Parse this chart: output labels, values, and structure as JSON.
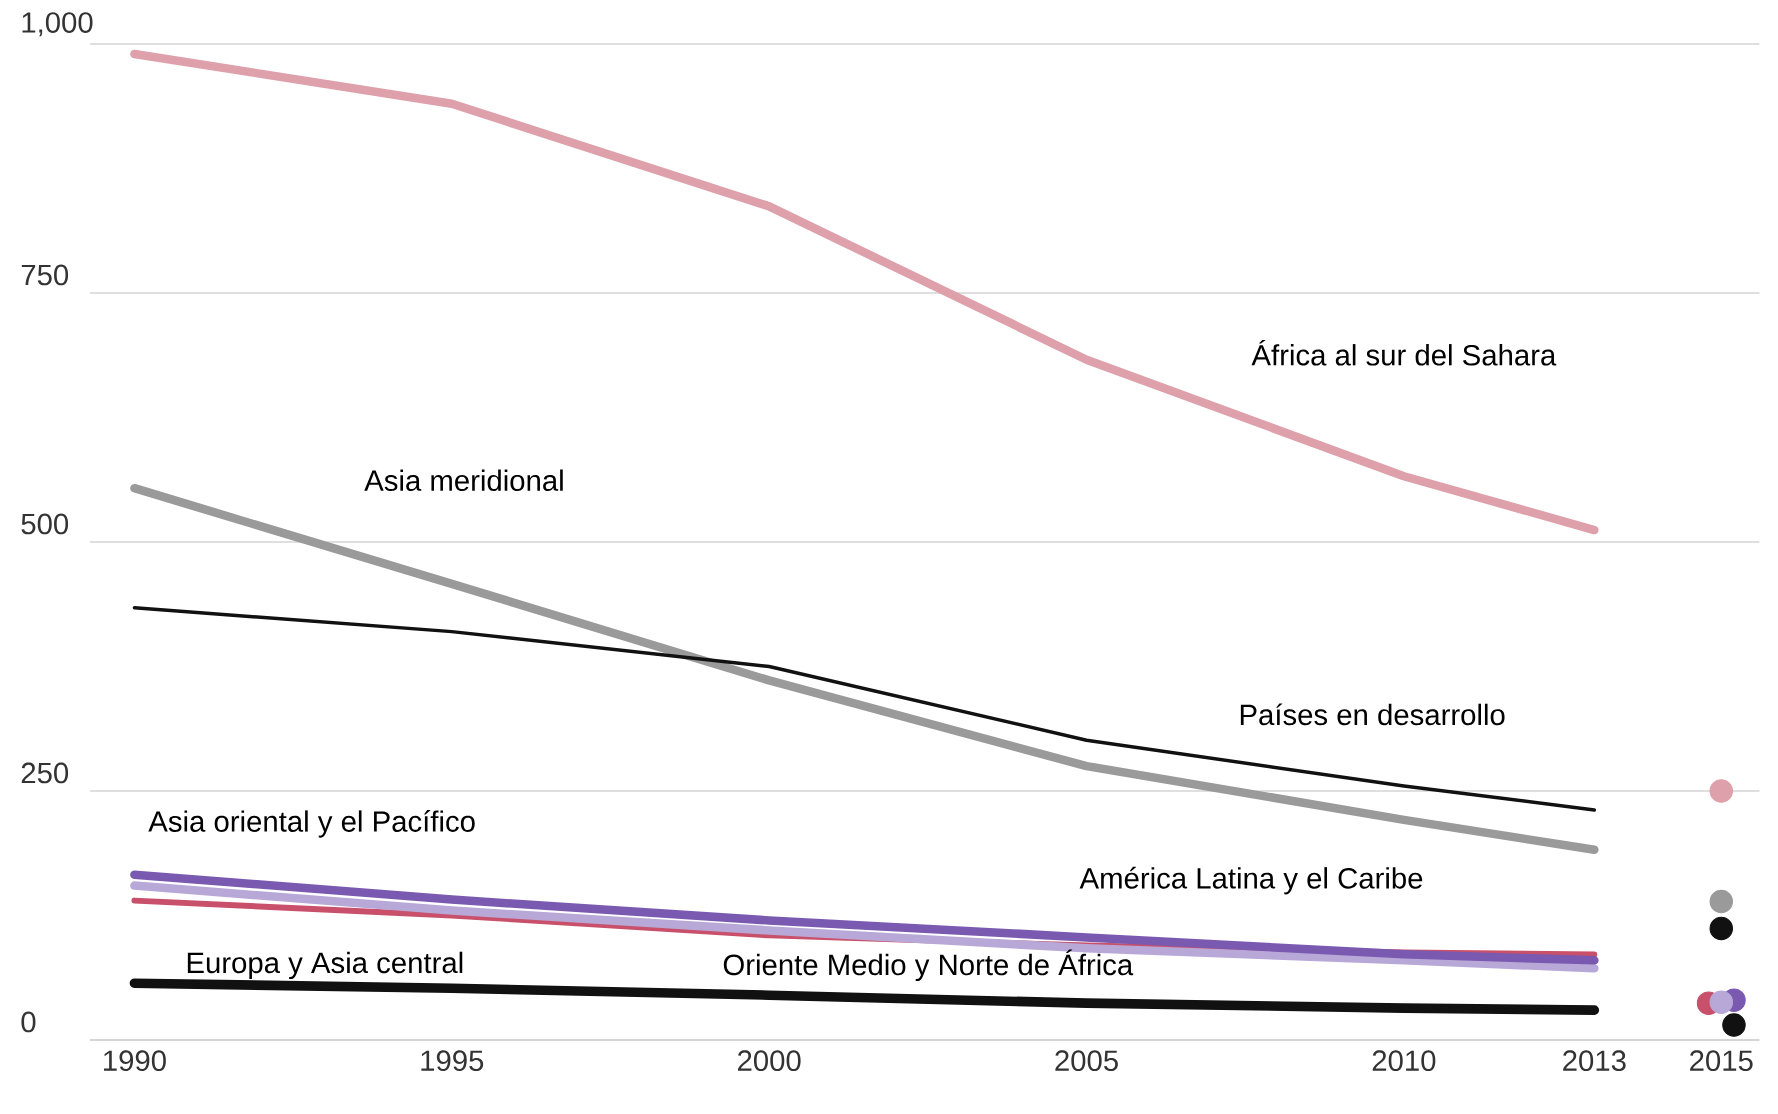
{
  "chart_data": {
    "type": "line",
    "xlim": [
      1989.3,
      2015.6
    ],
    "ylim": [
      0,
      1000
    ],
    "xticks": [
      1990,
      1995,
      2000,
      2005,
      2010,
      2013,
      2015
    ],
    "yticks": [
      0,
      250,
      500,
      {
        "value": 750,
        "label": "750"
      },
      {
        "value": 1000,
        "label": "1,000"
      }
    ],
    "grid": "y",
    "legend": false,
    "line_style": "solid",
    "series": [
      {
        "name": "África al sur del Sahara",
        "color": "#dea0aa",
        "x": [
          1990,
          1995,
          2000,
          2005,
          2010,
          2013
        ],
        "values": [
          990,
          940,
          837,
          683,
          566,
          512
        ]
      },
      {
        "name": "Asia meridional",
        "color": "#9a9a9a",
        "x": [
          1990,
          1995,
          2000,
          2005,
          2010,
          2013
        ],
        "values": [
          554,
          458,
          361,
          275,
          221,
          191
        ]
      },
      {
        "name": "Países en desarrollo",
        "color": "#111111",
        "x": [
          1990,
          1995,
          2000,
          2005,
          2010,
          2013
        ],
        "values": [
          434,
          410,
          375,
          301,
          255,
          231
        ]
      },
      {
        "name": "América Latina y el Caribe",
        "color": "#c8506a",
        "x": [
          1990,
          1995,
          2000,
          2005,
          2010,
          2013
        ],
        "values": [
          140,
          125,
          105,
          95,
          88,
          86
        ]
      },
      {
        "name": "Oriente Medio y Norte de África",
        "color": "#b8a8d8",
        "x": [
          1990,
          1995,
          2000,
          2005,
          2010,
          2013
        ],
        "values": [
          155,
          130,
          110,
          92,
          80,
          72
        ]
      },
      {
        "name": "Asia oriental y el Pacífico",
        "color": "#7a5ab0",
        "x": [
          1990,
          1995,
          2000,
          2005,
          2010,
          2013
        ],
        "values": [
          166,
          141,
          120,
          103,
          86,
          80
        ]
      },
      {
        "name": "Europa y Asia central",
        "color": "#111111",
        "x": [
          1990,
          1995,
          2000,
          2005,
          2010,
          2013
        ],
        "values": [
          57,
          52,
          45,
          37,
          32,
          30
        ]
      },
      {
        "type": "scatter",
        "marker": "circle",
        "color": "#dea0aa",
        "x": [
          2015
        ],
        "values": [
          250
        ]
      },
      {
        "type": "scatter",
        "marker": "circle",
        "color": "#9a9a9a",
        "x": [
          2015
        ],
        "values": [
          139
        ]
      },
      {
        "type": "scatter",
        "marker": "circle",
        "color": "#111111",
        "x": [
          2015
        ],
        "values": [
          112
        ]
      },
      {
        "type": "scatter",
        "marker": "circle",
        "color": "#c8506a",
        "x": [
          2014.8
        ],
        "values": [
          37
        ]
      },
      {
        "type": "scatter",
        "marker": "circle",
        "color": "#7a5ab0",
        "x": [
          2015.2
        ],
        "values": [
          40
        ]
      },
      {
        "type": "scatter",
        "marker": "circle",
        "color": "#b8a8d8",
        "x": [
          2015
        ],
        "values": [
          38
        ]
      },
      {
        "type": "scatter",
        "marker": "circle",
        "color": "#111111",
        "x": [
          2015.2
        ],
        "values": [
          15
        ]
      }
    ]
  }
}
